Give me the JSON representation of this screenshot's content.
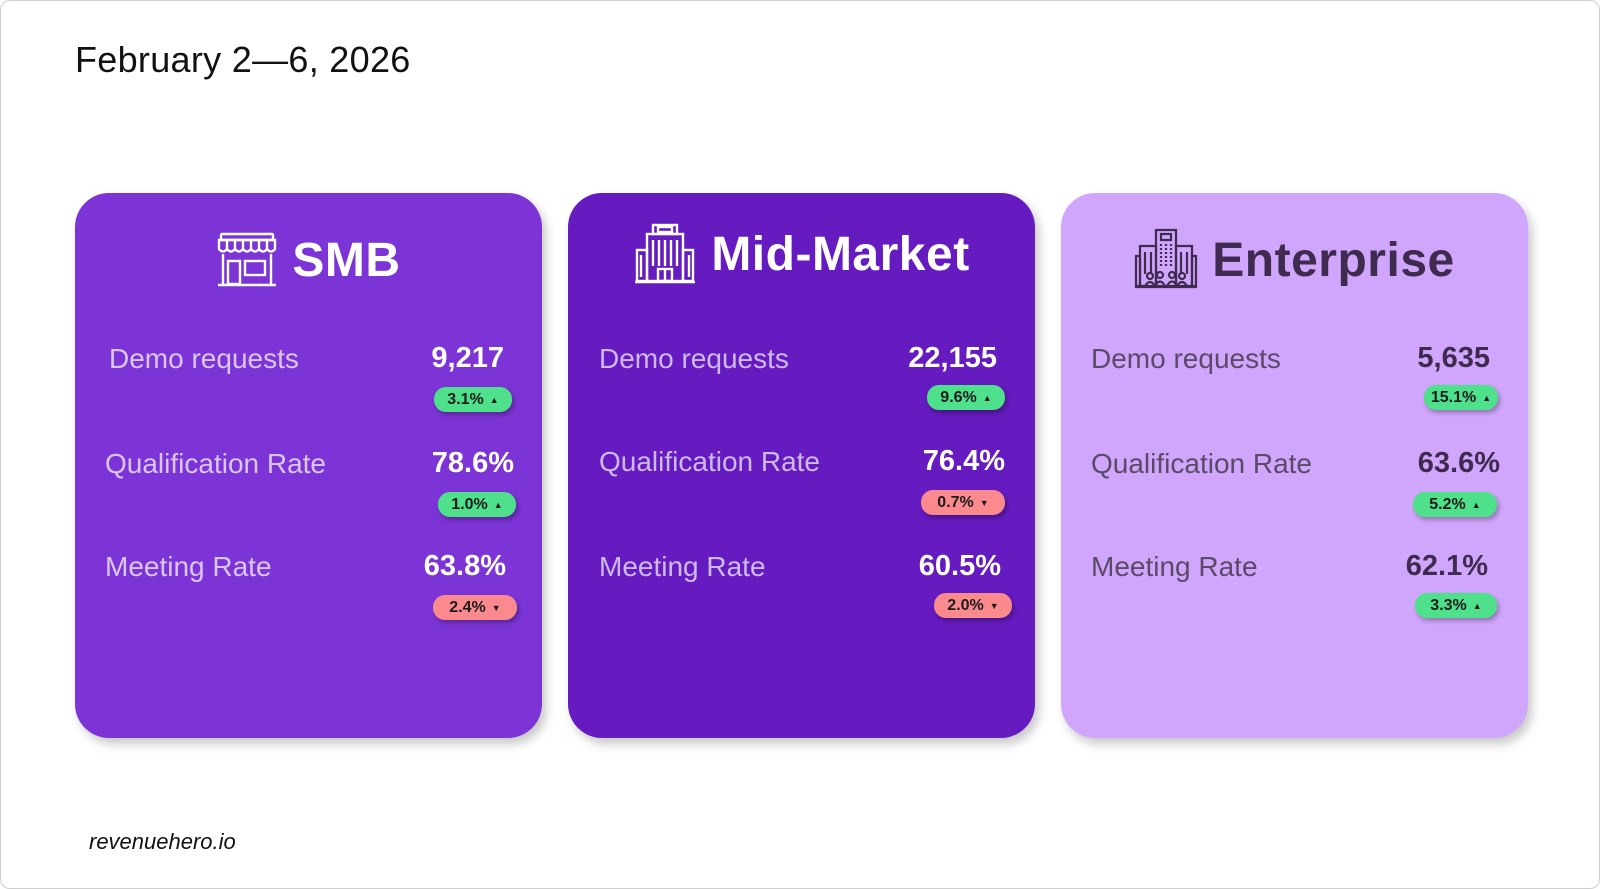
{
  "header": {
    "date_range": "February 2—6, 2026"
  },
  "footer": {
    "brand": "revenuehero.io"
  },
  "colors": {
    "smb_card": "#7c34d6",
    "mid_card": "#651bbf",
    "enterprise_card": "#cfa6fb",
    "badge_up": "#4fe08c",
    "badge_down": "#fa8a8e"
  },
  "segments": [
    {
      "title": "SMB",
      "icon": "storefront-icon",
      "metrics": [
        {
          "label": "Demo requests",
          "value": "9,217",
          "change": "3.1%",
          "direction": "up",
          "arrow": "▲"
        },
        {
          "label": "Qualification Rate",
          "value": "78.6%",
          "change": "1.0%",
          "direction": "up",
          "arrow": "▲"
        },
        {
          "label": "Meeting Rate",
          "value": "63.8%",
          "change": "2.4%",
          "direction": "down",
          "arrow": "▼"
        }
      ]
    },
    {
      "title": "Mid-Market",
      "icon": "office-building-icon",
      "metrics": [
        {
          "label": "Demo requests",
          "value": "22,155",
          "change": "9.6%",
          "direction": "up",
          "arrow": "▲"
        },
        {
          "label": "Qualification Rate",
          "value": "76.4%",
          "change": "0.7%",
          "direction": "down",
          "arrow": "▼"
        },
        {
          "label": "Meeting Rate",
          "value": "60.5%",
          "change": "2.0%",
          "direction": "down",
          "arrow": "▼"
        }
      ]
    },
    {
      "title": "Enterprise",
      "icon": "corporate-campus-icon",
      "metrics": [
        {
          "label": "Demo requests",
          "value": "5,635",
          "change": "15.1%",
          "direction": "up",
          "arrow": "▲"
        },
        {
          "label": "Qualification Rate",
          "value": "63.6%",
          "change": "5.2%",
          "direction": "up",
          "arrow": "▲"
        },
        {
          "label": "Meeting Rate",
          "value": "62.1%",
          "change": "3.3%",
          "direction": "up",
          "arrow": "▲"
        }
      ]
    }
  ]
}
